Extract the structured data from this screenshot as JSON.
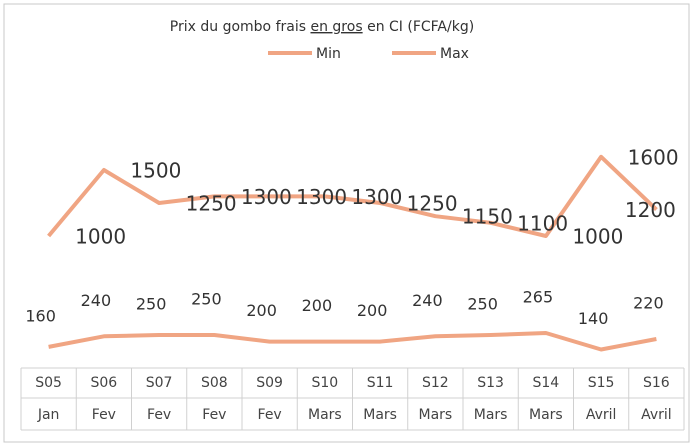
{
  "chart_data": {
    "type": "line",
    "title_parts": [
      "Prix du gombo frais ",
      "en gros",
      " en CI (FCFA/kg)"
    ],
    "categories": [
      "S05",
      "S06",
      "S07",
      "S08",
      "S09",
      "S10",
      "S11",
      "S12",
      "S13",
      "S14",
      "S15",
      "S16"
    ],
    "months": [
      "Jan",
      "Fev",
      "Fev",
      "Fev",
      "Fev",
      "Mars",
      "Mars",
      "Mars",
      "Mars",
      "Mars",
      "Avril",
      "Avril"
    ],
    "series": [
      {
        "name": "Min",
        "color": "#f0a583",
        "values": [
          160,
          240,
          250,
          250,
          200,
          200,
          200,
          240,
          250,
          265,
          140,
          220
        ]
      },
      {
        "name": "Max",
        "color": "#f0a583",
        "values": [
          1000,
          1500,
          1250,
          1300,
          1300,
          1300,
          1250,
          1150,
          1100,
          1000,
          1600,
          1200
        ]
      }
    ],
    "ylim": [
      0,
      2000
    ]
  }
}
